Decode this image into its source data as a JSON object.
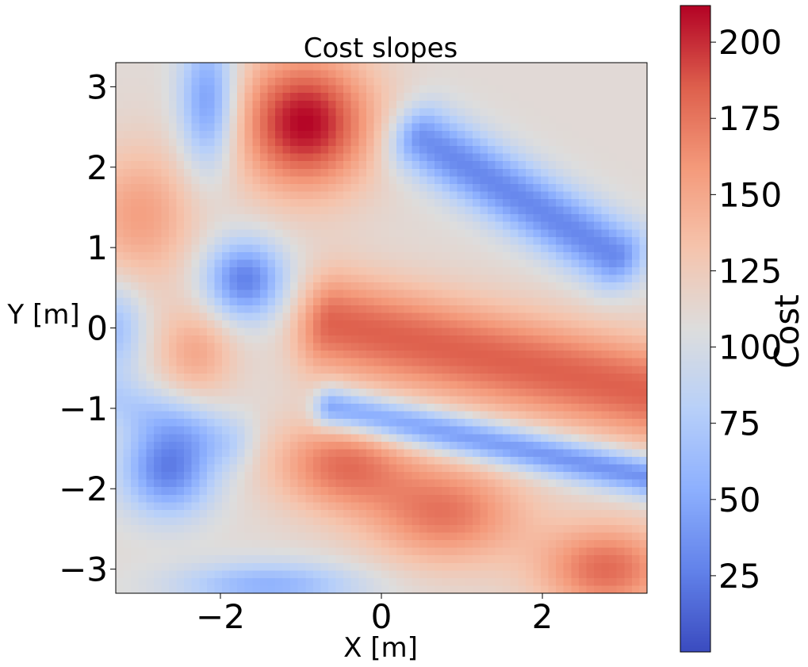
{
  "chart_data": {
    "type": "heatmap",
    "title": "Cost slopes",
    "xlabel": "X [m]",
    "ylabel": "Y [m]",
    "colorbar_label": "Cost",
    "colormap": "coolwarm",
    "xlim": [
      -3.3,
      3.3
    ],
    "ylim": [
      -3.3,
      3.3
    ],
    "x_ticks": [
      -2,
      0,
      2
    ],
    "x_tick_labels": [
      "−2",
      "0",
      "2"
    ],
    "y_ticks": [
      -3,
      -2,
      -1,
      0,
      1,
      2,
      3
    ],
    "y_tick_labels": [
      "−3",
      "−2",
      "−1",
      "0",
      "1",
      "2",
      "3"
    ],
    "color_range": [
      0,
      212
    ],
    "colorbar_ticks": [
      25,
      50,
      75,
      100,
      125,
      150,
      175,
      200
    ],
    "colorbar_tick_labels": [
      "25",
      "50",
      "75",
      "100",
      "125",
      "150",
      "175",
      "200"
    ],
    "grid": false,
    "base_value": 110,
    "features": [
      {
        "x": -0.95,
        "y": 2.55,
        "sx": 0.6,
        "sy": 0.6,
        "v": 212
      },
      {
        "x": -2.15,
        "y": 2.8,
        "sx": 0.25,
        "sy": 0.6,
        "v": 35
      },
      {
        "x": -1.7,
        "y": 0.6,
        "sx": 0.35,
        "sy": 0.35,
        "v": 25
      },
      {
        "x": -2.65,
        "y": -1.75,
        "sx": 0.4,
        "sy": 0.4,
        "v": 25
      },
      {
        "x": -3.3,
        "y": 0.0,
        "sx": 0.25,
        "sy": 0.4,
        "v": 65
      },
      {
        "x": -3.0,
        "y": 1.4,
        "sx": 0.5,
        "sy": 0.6,
        "v": 155
      },
      {
        "x": -2.3,
        "y": -0.3,
        "sx": 0.35,
        "sy": 0.4,
        "v": 150
      },
      {
        "x": -1.4,
        "y": -3.2,
        "sx": 0.8,
        "sy": 0.2,
        "v": 55
      },
      {
        "x": 0.8,
        "y": -2.3,
        "sx": 0.7,
        "sy": 0.45,
        "v": 175
      },
      {
        "x": 2.8,
        "y": -3.0,
        "sx": 0.6,
        "sy": 0.4,
        "v": 180
      },
      {
        "x": -0.5,
        "y": -1.7,
        "sx": 0.6,
        "sy": 0.4,
        "v": 175
      }
    ],
    "ridges": [
      {
        "from": [
          -0.6,
          0.05
        ],
        "to": [
          3.3,
          -0.8
        ],
        "width": 0.45,
        "v": 185
      },
      {
        "from": [
          -0.6,
          -1.0
        ],
        "to": [
          3.3,
          -1.85
        ],
        "width": 0.18,
        "v": 30
      },
      {
        "from": [
          0.5,
          2.35
        ],
        "to": [
          2.9,
          0.9
        ],
        "width": 0.3,
        "v": 30
      },
      {
        "from": [
          -3.3,
          -0.9
        ],
        "to": [
          -1.9,
          -1.4
        ],
        "width": 0.25,
        "v": 80
      }
    ]
  }
}
